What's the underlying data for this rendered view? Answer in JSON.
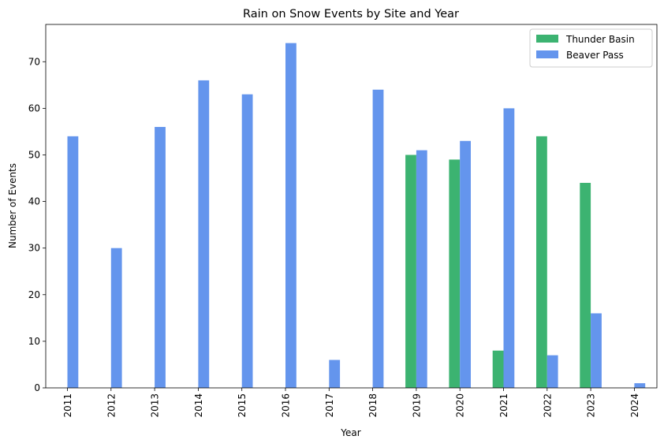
{
  "chart_data": {
    "type": "bar",
    "title": "Rain on Snow Events by Site and Year",
    "xlabel": "Year",
    "ylabel": "Number of Events",
    "categories": [
      "2011",
      "2012",
      "2013",
      "2014",
      "2015",
      "2016",
      "2017",
      "2018",
      "2019",
      "2020",
      "2021",
      "2022",
      "2023",
      "2024"
    ],
    "series": [
      {
        "name": "Thunder Basin",
        "color": "#3cb371",
        "values": [
          0,
          0,
          0,
          0,
          0,
          0,
          0,
          0,
          50,
          49,
          8,
          54,
          44,
          0
        ]
      },
      {
        "name": "Beaver Pass",
        "color": "#6495ed",
        "values": [
          54,
          30,
          56,
          66,
          63,
          74,
          6,
          64,
          51,
          53,
          60,
          7,
          16,
          1
        ]
      }
    ],
    "ylim": [
      0,
      78
    ],
    "yticks": [
      0,
      10,
      20,
      30,
      40,
      50,
      60,
      70
    ],
    "grid": false,
    "legend_position": "top-right",
    "x_tick_rotation": "vertical"
  }
}
